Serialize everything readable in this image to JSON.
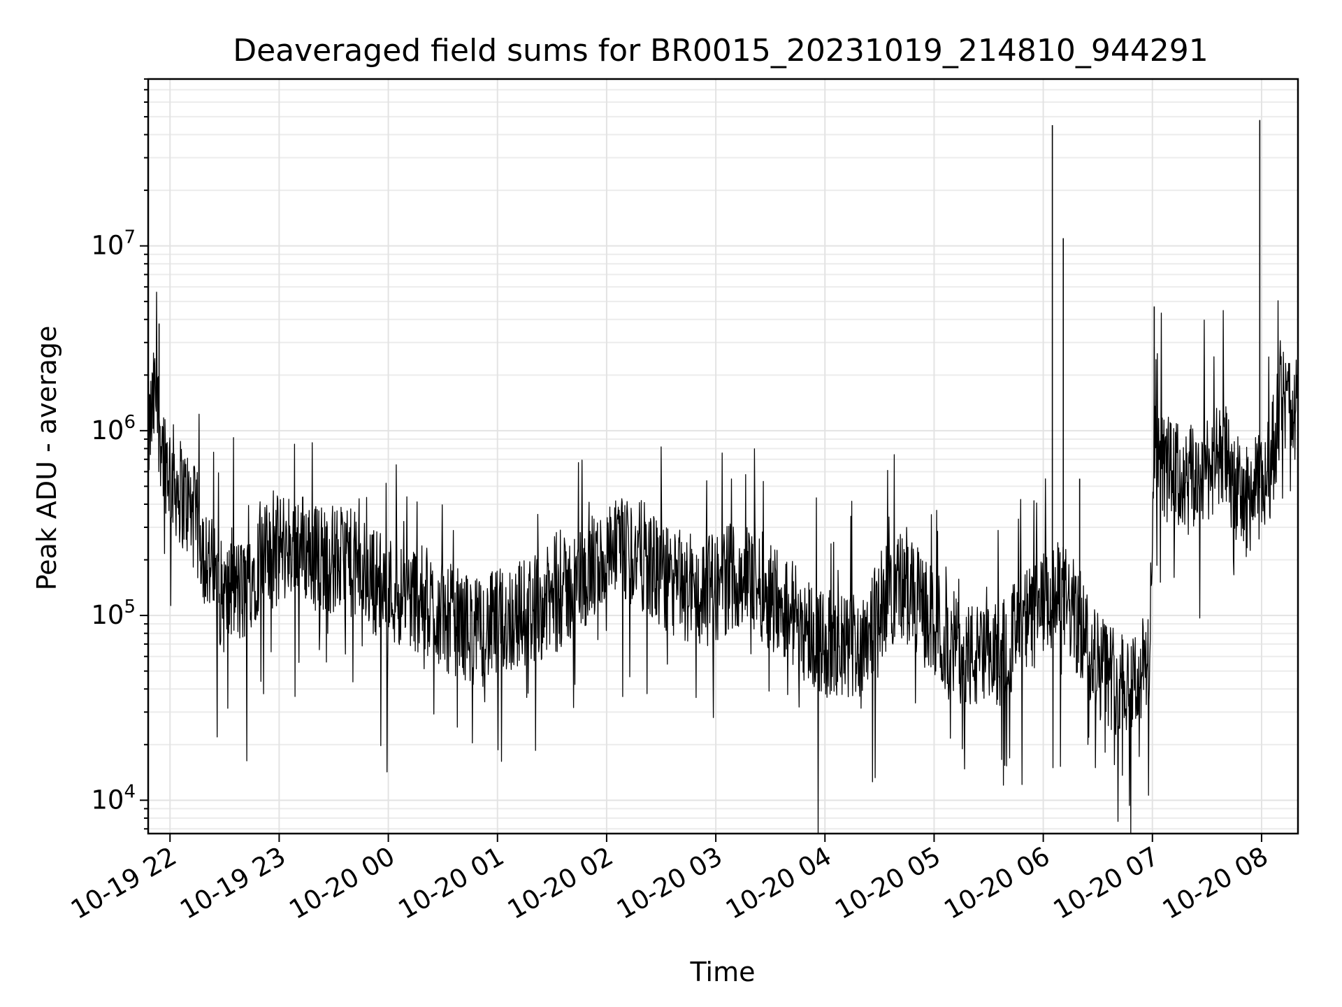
{
  "chart_data": {
    "type": "line",
    "title": "Deaveraged field sums for BR0015_20231019_214810_944291",
    "xlabel": "Time",
    "ylabel": "Peak ADU - average",
    "yscale": "log",
    "grid": true,
    "xlim": [
      "2023-10-19 21:48",
      "2023-10-20 08:20"
    ],
    "ylim": [
      6600,
      80000000
    ],
    "x_ticks": [
      {
        "value": "2023-10-19 22:00",
        "label": "10-19 22"
      },
      {
        "value": "2023-10-19 23:00",
        "label": "10-19 23"
      },
      {
        "value": "2023-10-20 00:00",
        "label": "10-20 00"
      },
      {
        "value": "2023-10-20 01:00",
        "label": "10-20 01"
      },
      {
        "value": "2023-10-20 02:00",
        "label": "10-20 02"
      },
      {
        "value": "2023-10-20 03:00",
        "label": "10-20 03"
      },
      {
        "value": "2023-10-20 04:00",
        "label": "10-20 04"
      },
      {
        "value": "2023-10-20 05:00",
        "label": "10-20 05"
      },
      {
        "value": "2023-10-20 06:00",
        "label": "10-20 06"
      },
      {
        "value": "2023-10-20 07:00",
        "label": "10-20 07"
      },
      {
        "value": "2023-10-20 08:00",
        "label": "10-20 08"
      }
    ],
    "y_ticks": [
      {
        "value": 10000,
        "base": "10",
        "exp": "4"
      },
      {
        "value": 100000,
        "base": "10",
        "exp": "5"
      },
      {
        "value": 1000000,
        "base": "10",
        "exp": "6"
      },
      {
        "value": 10000000,
        "base": "10",
        "exp": "7"
      }
    ],
    "series": [
      {
        "color": "#000000",
        "points": [
          [
            "2023-10-19 21:48",
            900000
          ],
          [
            "2023-10-19 21:52",
            1600000
          ],
          [
            "2023-10-19 21:56",
            800000
          ],
          [
            "2023-10-19 22:00",
            600000
          ],
          [
            "2023-10-19 22:05",
            480000
          ],
          [
            "2023-10-19 22:10",
            400000
          ],
          [
            "2023-10-19 22:15",
            300000
          ],
          [
            "2023-10-19 22:20",
            220000
          ],
          [
            "2023-10-19 22:25",
            150000
          ],
          [
            "2023-10-19 22:30",
            120000
          ],
          [
            "2023-10-19 22:35",
            140000
          ],
          [
            "2023-10-19 22:40",
            130000
          ],
          [
            "2023-10-19 22:45",
            170000
          ],
          [
            "2023-10-19 22:50",
            210000
          ],
          [
            "2023-10-19 22:55",
            200000
          ],
          [
            "2023-10-19 23:00",
            230000
          ],
          [
            "2023-10-19 23:10",
            250000
          ],
          [
            "2023-10-19 23:20",
            210000
          ],
          [
            "2023-10-19 23:30",
            200000
          ],
          [
            "2023-10-19 23:40",
            190000
          ],
          [
            "2023-10-19 23:50",
            160000
          ],
          [
            "2023-10-20 00:00",
            140000
          ],
          [
            "2023-10-20 00:10",
            130000
          ],
          [
            "2023-10-20 00:20",
            120000
          ],
          [
            "2023-10-20 00:30",
            100000
          ],
          [
            "2023-10-20 00:40",
            90000
          ],
          [
            "2023-10-20 00:50",
            80000
          ],
          [
            "2023-10-20 01:00",
            90000
          ],
          [
            "2023-10-20 01:10",
            100000
          ],
          [
            "2023-10-20 01:20",
            110000
          ],
          [
            "2023-10-20 01:30",
            120000
          ],
          [
            "2023-10-20 01:40",
            140000
          ],
          [
            "2023-10-20 01:50",
            170000
          ],
          [
            "2023-10-20 02:00",
            200000
          ],
          [
            "2023-10-20 02:10",
            220000
          ],
          [
            "2023-10-20 02:20",
            210000
          ],
          [
            "2023-10-20 02:30",
            160000
          ],
          [
            "2023-10-20 02:40",
            140000
          ],
          [
            "2023-10-20 02:50",
            130000
          ],
          [
            "2023-10-20 03:00",
            140000
          ],
          [
            "2023-10-20 03:10",
            170000
          ],
          [
            "2023-10-20 03:20",
            160000
          ],
          [
            "2023-10-20 03:30",
            130000
          ],
          [
            "2023-10-20 03:40",
            110000
          ],
          [
            "2023-10-20 03:50",
            85000
          ],
          [
            "2023-10-20 04:00",
            70000
          ],
          [
            "2023-10-20 04:10",
            65000
          ],
          [
            "2023-10-20 04:20",
            75000
          ],
          [
            "2023-10-20 04:30",
            110000
          ],
          [
            "2023-10-20 04:40",
            150000
          ],
          [
            "2023-10-20 04:50",
            120000
          ],
          [
            "2023-10-20 05:00",
            90000
          ],
          [
            "2023-10-20 05:10",
            70000
          ],
          [
            "2023-10-20 05:20",
            60000
          ],
          [
            "2023-10-20 05:30",
            55000
          ],
          [
            "2023-10-20 05:40",
            70000
          ],
          [
            "2023-10-20 05:50",
            90000
          ],
          [
            "2023-10-20 06:00",
            110000
          ],
          [
            "2023-10-20 06:10",
            130000
          ],
          [
            "2023-10-20 06:20",
            90000
          ],
          [
            "2023-10-20 06:30",
            55000
          ],
          [
            "2023-10-20 06:40",
            45000
          ],
          [
            "2023-10-20 06:50",
            45000
          ],
          [
            "2023-10-20 06:58",
            55000
          ],
          [
            "2023-10-20 07:01",
            700000
          ],
          [
            "2023-10-20 07:10",
            600000
          ],
          [
            "2023-10-20 07:20",
            500000
          ],
          [
            "2023-10-20 07:30",
            650000
          ],
          [
            "2023-10-20 07:40",
            700000
          ],
          [
            "2023-10-20 07:50",
            400000
          ],
          [
            "2023-10-20 08:00",
            500000
          ],
          [
            "2023-10-20 08:05",
            650000
          ],
          [
            "2023-10-20 08:10",
            1400000
          ],
          [
            "2023-10-20 08:20",
            1300000
          ]
        ],
        "spikes": [
          [
            "2023-10-20 06:05",
            45000000
          ],
          [
            "2023-10-20 06:11",
            11000000
          ],
          [
            "2023-10-20 06:20",
            550000
          ],
          [
            "2023-10-20 07:01",
            4700000
          ],
          [
            "2023-10-20 07:59",
            48000000
          ],
          [
            "2023-10-19 21:54",
            3800000
          ]
        ]
      }
    ]
  }
}
